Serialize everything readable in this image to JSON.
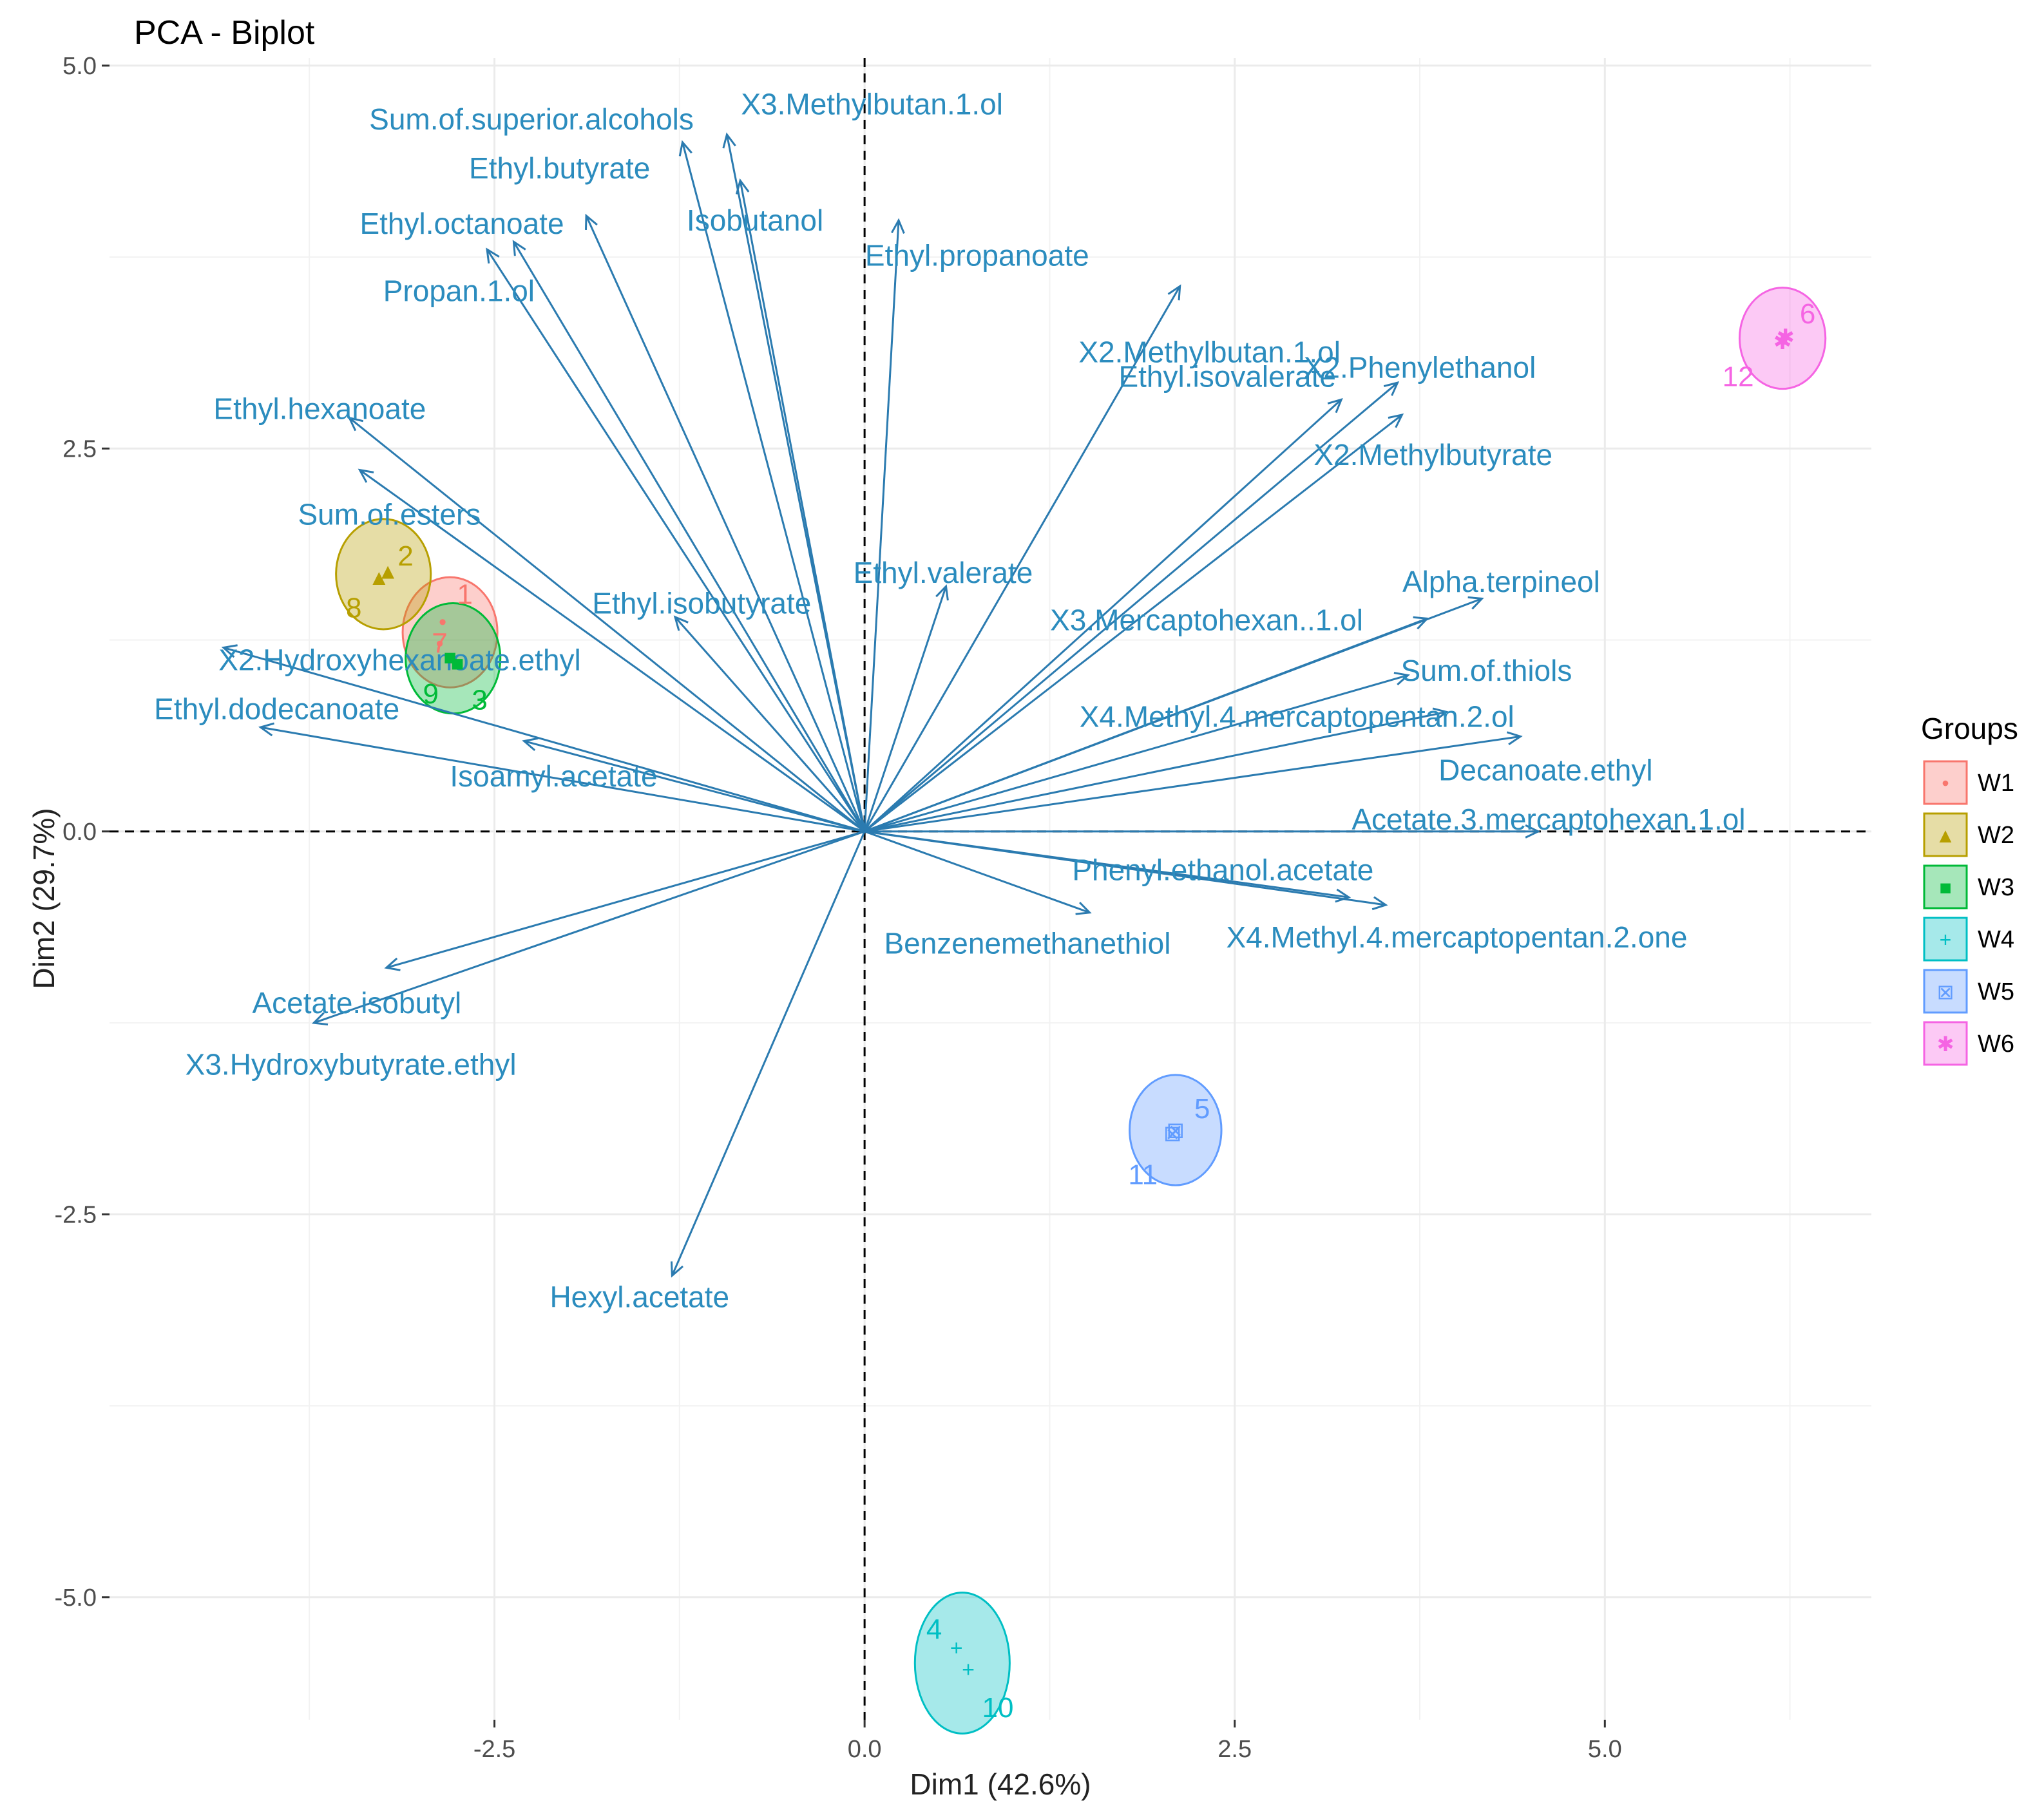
{
  "chart_data": {
    "type": "scatter",
    "title": "PCA - Biplot",
    "xlabel": "Dim1 (42.6%)",
    "ylabel": "Dim2 (29.7%)",
    "xlim": [
      -5.1,
      6.8
    ],
    "ylim": [
      -5.8,
      5.05
    ],
    "xticks": [
      -2.5,
      0.0,
      2.5,
      5.0
    ],
    "xtick_labels": [
      "-2.5",
      "0.0",
      "2.5",
      "5.0"
    ],
    "yticks": [
      -5.0,
      -2.5,
      0.0,
      2.5,
      5.0
    ],
    "ytick_labels": [
      "-5.0",
      "-2.5",
      "0.0",
      "2.5",
      "5.0"
    ],
    "grid": true,
    "legend_position": "right",
    "legend_title": "Groups",
    "groups": [
      {
        "name": "W1",
        "color": "#F8766D",
        "glyph": "•",
        "center": [
          -2.8,
          1.3
        ],
        "radii": [
          0.32,
          0.36
        ]
      },
      {
        "name": "W2",
        "color": "#B79F00",
        "glyph": "▲",
        "center": [
          -3.25,
          1.68
        ],
        "radii": [
          0.32,
          0.36
        ]
      },
      {
        "name": "W3",
        "color": "#00BA38",
        "glyph": "■",
        "center": [
          -2.78,
          1.13
        ],
        "radii": [
          0.32,
          0.36
        ]
      },
      {
        "name": "W4",
        "color": "#00BFC4",
        "glyph": "+",
        "center": [
          0.66,
          -5.43
        ],
        "radii": [
          0.32,
          0.46
        ]
      },
      {
        "name": "W5",
        "color": "#619CFF",
        "glyph": "⊠",
        "center": [
          2.1,
          -1.95
        ],
        "radii": [
          0.31,
          0.36
        ]
      },
      {
        "name": "W6",
        "color": "#F564E3",
        "glyph": "✱",
        "center": [
          6.2,
          3.22
        ],
        "radii": [
          0.29,
          0.33
        ]
      }
    ],
    "observations": [
      {
        "label": "1",
        "group": "W1",
        "x": -2.85,
        "y": 1.37,
        "lx": 0.15,
        "ly": 0.18
      },
      {
        "label": "7",
        "group": "W1",
        "x": -2.87,
        "y": 1.23,
        "lx": 0.0,
        "ly": 0.0
      },
      {
        "label": "2",
        "group": "W2",
        "x": -3.22,
        "y": 1.7,
        "lx": 0.12,
        "ly": 0.1
      },
      {
        "label": "8",
        "group": "W2",
        "x": -3.28,
        "y": 1.66,
        "lx": -0.17,
        "ly": -0.2
      },
      {
        "label": "9",
        "group": "W3",
        "x": -2.8,
        "y": 1.14,
        "lx": -0.13,
        "ly": -0.24
      },
      {
        "label": "3",
        "group": "W3",
        "x": -2.75,
        "y": 1.1,
        "lx": 0.15,
        "ly": -0.24
      },
      {
        "label": "4",
        "group": "W4",
        "x": 0.62,
        "y": -5.33,
        "lx": -0.15,
        "ly": 0.12
      },
      {
        "label": "10",
        "group": "W4",
        "x": 0.7,
        "y": -5.47,
        "lx": 0.2,
        "ly": -0.25
      },
      {
        "label": "5",
        "group": "W5",
        "x": 2.1,
        "y": -1.95,
        "lx": 0.18,
        "ly": 0.14
      },
      {
        "label": "11",
        "group": "W5",
        "x": 2.08,
        "y": -1.97,
        "lx": -0.2,
        "ly": -0.27
      },
      {
        "label": "6",
        "group": "W6",
        "x": 6.22,
        "y": 3.23,
        "lx": 0.15,
        "ly": 0.15
      },
      {
        "label": "12",
        "group": "W6",
        "x": 6.2,
        "y": 3.2,
        "lx": -0.3,
        "ly": -0.23
      }
    ],
    "variables": [
      {
        "name": "Sum.of.superior.alcohols",
        "x": -1.23,
        "y": 4.5,
        "lx": -2.25,
        "ly": 4.65
      },
      {
        "name": "X3.Methylbutan.1.ol",
        "x": -0.93,
        "y": 4.55,
        "lx": 0.05,
        "ly": 4.75
      },
      {
        "name": "Ethyl.butyrate",
        "x": -1.88,
        "y": 4.02,
        "lx": -2.06,
        "ly": 4.33
      },
      {
        "name": "Isobutanol",
        "x": -0.84,
        "y": 4.25,
        "lx": -0.74,
        "ly": 3.99
      },
      {
        "name": "Ethyl.octanoate",
        "x": -2.37,
        "y": 3.85,
        "lx": -2.72,
        "ly": 3.97
      },
      {
        "name": "Ethyl.propanoate",
        "x": 0.23,
        "y": 3.99,
        "lx": 0.76,
        "ly": 3.76
      },
      {
        "name": "Propan.1.ol",
        "x": -2.55,
        "y": 3.8,
        "lx": -2.74,
        "ly": 3.53
      },
      {
        "name": "X2.Methylbutan.1.ol",
        "x": 2.13,
        "y": 3.56,
        "lx": 2.33,
        "ly": 3.13
      },
      {
        "name": "Ethyl.isovalerate",
        "x": 3.22,
        "y": 2.82,
        "lx": 2.45,
        "ly": 2.97
      },
      {
        "name": "X2.Phenylethanol",
        "x": 3.6,
        "y": 2.93,
        "lx": 3.75,
        "ly": 3.03
      },
      {
        "name": "X2.Methylbutyrate",
        "x": 3.63,
        "y": 2.72,
        "lx": 3.84,
        "ly": 2.46
      },
      {
        "name": "Ethyl.hexanoate",
        "x": -3.48,
        "y": 2.7,
        "lx": -3.68,
        "ly": 2.76
      },
      {
        "name": "Sum.of.esters",
        "x": -3.41,
        "y": 2.36,
        "lx": -3.21,
        "ly": 2.07
      },
      {
        "name": "Ethyl.valerate",
        "x": 0.55,
        "y": 1.6,
        "lx": 0.53,
        "ly": 1.69
      },
      {
        "name": "Ethyl.isobutyrate",
        "x": -1.28,
        "y": 1.4,
        "lx": -1.1,
        "ly": 1.49
      },
      {
        "name": "Alpha.terpineol",
        "x": 4.17,
        "y": 1.52,
        "lx": 4.3,
        "ly": 1.63
      },
      {
        "name": "X3.Mercaptohexan..1.ol",
        "x": 3.8,
        "y": 1.39,
        "lx": 2.31,
        "ly": 1.38
      },
      {
        "name": "Sum.of.thiols",
        "x": 3.67,
        "y": 1.02,
        "lx": 4.2,
        "ly": 1.05
      },
      {
        "name": "X2.Hydroxyhexanoate.ethyl",
        "x": -4.33,
        "y": 1.2,
        "lx": -3.14,
        "ly": 1.12
      },
      {
        "name": "X4.Methyl.4.mercaptopentan.2.ol",
        "x": 3.93,
        "y": 0.78,
        "lx": 2.92,
        "ly": 0.75
      },
      {
        "name": "Ethyl.dodecanoate",
        "x": -4.08,
        "y": 0.68,
        "lx": -3.97,
        "ly": 0.8
      },
      {
        "name": "Isoamyl.acetate",
        "x": -2.3,
        "y": 0.59,
        "lx": -2.1,
        "ly": 0.36
      },
      {
        "name": "Decanoate.ethyl",
        "x": 4.43,
        "y": 0.62,
        "lx": 4.6,
        "ly": 0.4
      },
      {
        "name": "Acetate.3.mercaptohexan.1.ol",
        "x": 4.55,
        "y": 0.0,
        "lx": 4.62,
        "ly": 0.08
      },
      {
        "name": "Phenyl.ethanol.acetate",
        "x": 3.27,
        "y": -0.43,
        "lx": 2.42,
        "ly": -0.25
      },
      {
        "name": "X4.Methyl.4.mercaptopentan.2.one",
        "x": 3.52,
        "y": -0.48,
        "lx": 4.0,
        "ly": -0.69
      },
      {
        "name": "Benzenemethanethiol",
        "x": 1.52,
        "y": -0.53,
        "lx": 1.1,
        "ly": -0.73
      },
      {
        "name": "Acetate.isobutyl",
        "x": -3.23,
        "y": -0.89,
        "lx": -3.43,
        "ly": -1.12
      },
      {
        "name": "X3.Hydroxybutyrate.ethyl",
        "x": -3.72,
        "y": -1.25,
        "lx": -3.47,
        "ly": -1.52
      },
      {
        "name": "Hexyl.acetate",
        "x": -1.3,
        "y": -2.9,
        "lx": -1.52,
        "ly": -3.04
      }
    ]
  }
}
